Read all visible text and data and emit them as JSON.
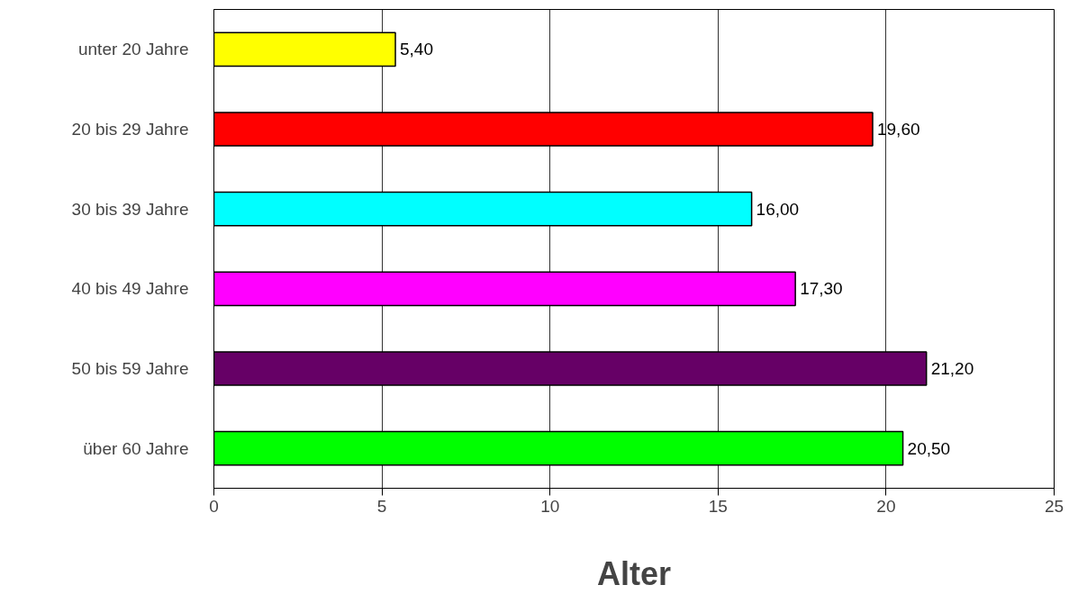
{
  "chart_data": {
    "type": "bar",
    "orientation": "horizontal",
    "xlabel": "Alter",
    "categories": [
      "unter 20 Jahre",
      "20 bis 29 Jahre",
      "30 bis 39 Jahre",
      "40 bis 49 Jahre",
      "50 bis 59 Jahre",
      "über 60 Jahre"
    ],
    "values": [
      5.4,
      19.6,
      16.0,
      17.3,
      21.2,
      20.5
    ],
    "value_labels": [
      "5,40",
      "19,60",
      "16,00",
      "17,30",
      "21,20",
      "20,50"
    ],
    "colors": [
      "#ffff00",
      "#ff0000",
      "#00ffff",
      "#ff00ff",
      "#660066",
      "#00ff00"
    ],
    "xlim": [
      0,
      25
    ],
    "xticks": [
      0,
      5,
      10,
      15,
      20,
      25
    ],
    "grid": "x"
  }
}
